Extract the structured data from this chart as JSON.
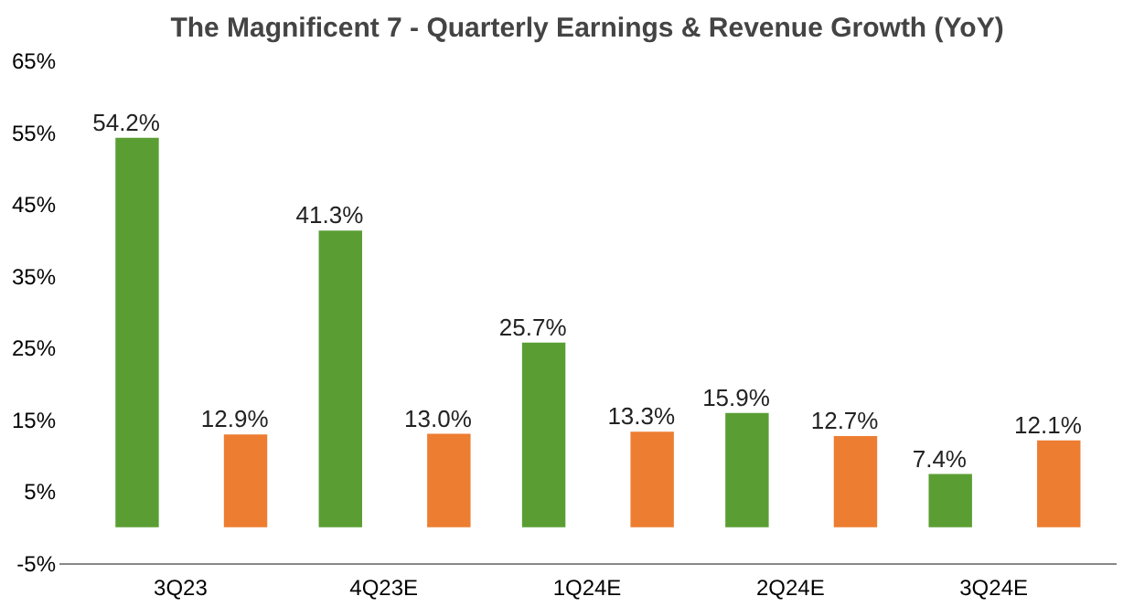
{
  "chart_data": {
    "type": "bar",
    "title": "The Magnificent 7 - Quarterly Earnings & Revenue Growth (YoY)",
    "categories": [
      "3Q23",
      "4Q23E",
      "1Q24E",
      "2Q24E",
      "3Q24E"
    ],
    "series": [
      {
        "color": "#5a9e33",
        "values": [
          54.2,
          41.3,
          25.7,
          15.9,
          7.4
        ],
        "value_labels": [
          "54.2%",
          "41.3%",
          "25.7%",
          "15.9%",
          "7.4%"
        ]
      },
      {
        "color": "#ed7d31",
        "values": [
          12.9,
          13.0,
          13.3,
          12.7,
          12.1
        ],
        "value_labels": [
          "12.9%",
          "13.0%",
          "13.3%",
          "12.7%",
          "12.1%"
        ]
      }
    ],
    "ylim": [
      -5,
      65
    ],
    "yticks": [
      {
        "value": -5,
        "label": "-5%"
      },
      {
        "value": 5,
        "label": "5%"
      },
      {
        "value": 15,
        "label": "15%"
      },
      {
        "value": 25,
        "label": "25%"
      },
      {
        "value": 35,
        "label": "35%"
      },
      {
        "value": 45,
        "label": "45%"
      },
      {
        "value": 55,
        "label": "55%"
      },
      {
        "value": 65,
        "label": "65%"
      }
    ],
    "grid": false,
    "legend": false
  }
}
